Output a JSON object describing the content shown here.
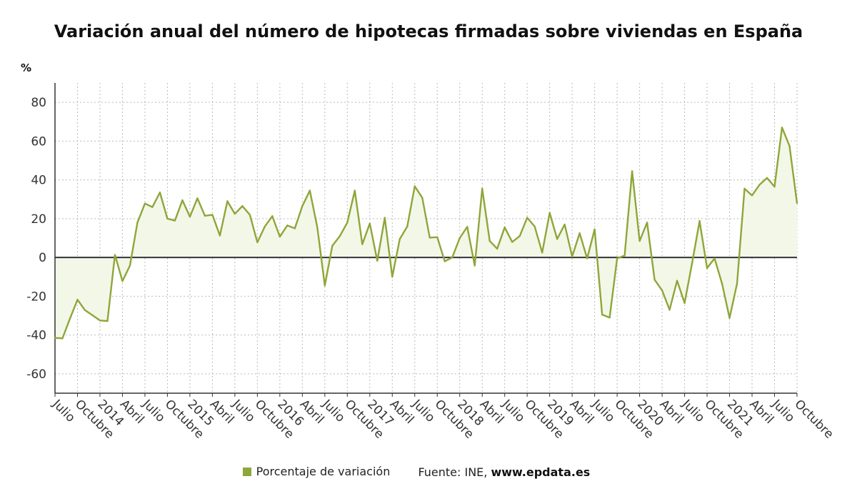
{
  "title": "Variación anual del número de hipotecas firmadas sobre viviendas en España",
  "unit_label": "%",
  "legend": {
    "series_label": "Porcentaje de variación",
    "source_label": "Fuente: INE,",
    "source_site": "www.epdata.es"
  },
  "colors": {
    "line": "#8ea63a",
    "area": "#f3f7e8",
    "swatch": "#8ea63a",
    "grid": "#bbbbbb",
    "zero": "#333333",
    "axis": "#333333"
  },
  "chart_data": {
    "type": "area",
    "title": "Variación anual del número de hipotecas firmadas sobre viviendas en España",
    "ylabel": "%",
    "ylim": [
      -70,
      90
    ],
    "yticks": [
      80,
      60,
      40,
      20,
      0,
      -20,
      -40,
      -60
    ],
    "grid": true,
    "legend_position": "bottom",
    "x_start": "2013-07",
    "x_end": "2021-10",
    "x_tick_labels": [
      "Julio",
      "Octubre",
      "2014",
      "Abril",
      "Julio",
      "Octubre",
      "2015",
      "Abril",
      "Julio",
      "Octubre",
      "2016",
      "Abril",
      "Julio",
      "Octubre",
      "2017",
      "Abril",
      "Julio",
      "Octubre",
      "2018",
      "Abril",
      "Julio",
      "Octubre",
      "2019",
      "Abril",
      "Julio",
      "Octubre",
      "2020",
      "Abril",
      "Julio",
      "Octubre",
      "2021",
      "Abril",
      "Julio",
      "Octubre"
    ],
    "series": [
      {
        "name": "Porcentaje de variación",
        "x": [
          "2013-07",
          "2013-08",
          "2013-09",
          "2013-10",
          "2013-11",
          "2013-12",
          "2014-01",
          "2014-02",
          "2014-03",
          "2014-04",
          "2014-05",
          "2014-06",
          "2014-07",
          "2014-08",
          "2014-09",
          "2014-10",
          "2014-11",
          "2014-12",
          "2015-01",
          "2015-02",
          "2015-03",
          "2015-04",
          "2015-05",
          "2015-06",
          "2015-07",
          "2015-08",
          "2015-09",
          "2015-10",
          "2015-11",
          "2015-12",
          "2016-01",
          "2016-02",
          "2016-03",
          "2016-04",
          "2016-05",
          "2016-06",
          "2016-07",
          "2016-08",
          "2016-09",
          "2016-10",
          "2016-11",
          "2016-12",
          "2017-01",
          "2017-02",
          "2017-03",
          "2017-04",
          "2017-05",
          "2017-06",
          "2017-07",
          "2017-08",
          "2017-09",
          "2017-10",
          "2017-11",
          "2017-12",
          "2018-01",
          "2018-02",
          "2018-03",
          "2018-04",
          "2018-05",
          "2018-06",
          "2018-07",
          "2018-08",
          "2018-09",
          "2018-10",
          "2018-11",
          "2018-12",
          "2019-01",
          "2019-02",
          "2019-03",
          "2019-04",
          "2019-05",
          "2019-06",
          "2019-07",
          "2019-08",
          "2019-09",
          "2019-10",
          "2019-11",
          "2019-12",
          "2020-01",
          "2020-02",
          "2020-03",
          "2020-04",
          "2020-05",
          "2020-06",
          "2020-07",
          "2020-08",
          "2020-09",
          "2020-10",
          "2020-11",
          "2020-12",
          "2021-01",
          "2021-02",
          "2021-03",
          "2021-04",
          "2021-05",
          "2021-06",
          "2021-07",
          "2021-08",
          "2021-09",
          "2021-10"
        ],
        "values": [
          -41.5,
          -41.7,
          -31.5,
          -21.8,
          -27.2,
          -29.8,
          -32.5,
          -32.8,
          1.3,
          -12.2,
          -4.2,
          18.0,
          27.8,
          26.0,
          33.5,
          20.0,
          19.0,
          29.5,
          21.0,
          30.5,
          21.5,
          22.0,
          11.3,
          29.0,
          22.5,
          26.5,
          22.0,
          7.8,
          16.0,
          21.3,
          10.7,
          16.5,
          15.0,
          26.5,
          34.5,
          15.5,
          -14.5,
          6.0,
          11.0,
          18.0,
          34.5,
          6.8,
          17.5,
          -1.7,
          20.5,
          -10.0,
          9.5,
          16.0,
          36.7,
          30.8,
          10.2,
          10.5,
          -2.0,
          0.0,
          10.0,
          15.8,
          -4.2,
          35.5,
          8.5,
          4.5,
          15.5,
          8.0,
          11.0,
          20.5,
          16.0,
          2.5,
          23.0,
          9.5,
          17.0,
          0.5,
          12.5,
          -0.5,
          14.5,
          -29.5,
          -31.0,
          -0.5,
          1.0,
          44.5,
          8.5,
          18.0,
          -11.5,
          -17.0,
          -27.0,
          -12.0,
          -23.5,
          -3.0,
          18.8,
          -5.5,
          -0.5,
          -13.5,
          -31.2,
          -13.5,
          35.5,
          32.0,
          37.5,
          41.0,
          36.5,
          67.0,
          57.5,
          28.0
        ]
      }
    ]
  }
}
